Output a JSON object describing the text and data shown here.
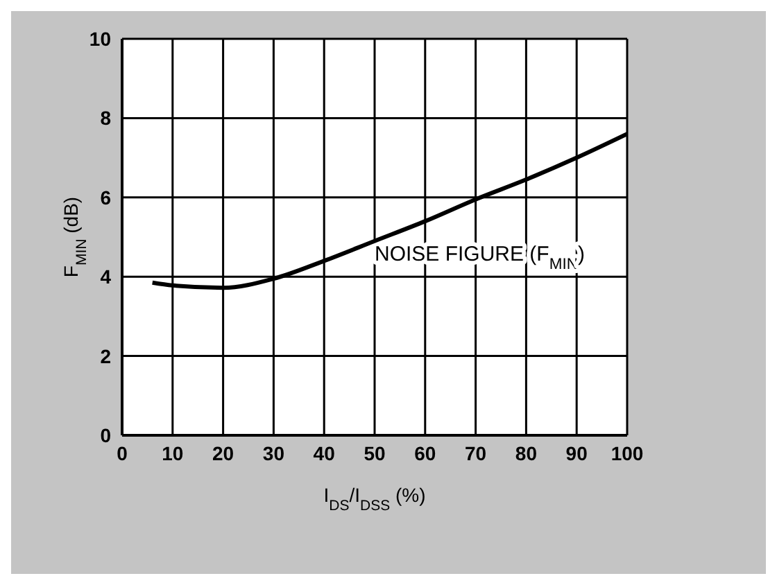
{
  "chart_data": {
    "type": "line",
    "xlabel": "I$_{DS}$/I$_{DSS}$ (%)",
    "ylabel": "F$_{MIN}$ (dB)",
    "annotations": [
      "NOISE FIGURE (F$_{MIN}$)"
    ],
    "x": [
      6,
      10,
      20,
      30,
      40,
      50,
      60,
      70,
      80,
      90,
      100
    ],
    "series": [
      {
        "color": "#000000",
        "values": [
          3.85,
          3.78,
          3.72,
          3.95,
          4.4,
          4.9,
          5.4,
          5.95,
          6.45,
          7.0,
          7.6
        ]
      }
    ],
    "xlim": [
      0,
      100
    ],
    "xticks": [
      0,
      10,
      20,
      30,
      40,
      50,
      60,
      70,
      80,
      90,
      100
    ],
    "ylim": [
      0,
      10
    ],
    "yticks": [
      0,
      2,
      4,
      6,
      8,
      10
    ],
    "grid": true,
    "marker": "none",
    "line_style": "solid",
    "legend": false
  }
}
